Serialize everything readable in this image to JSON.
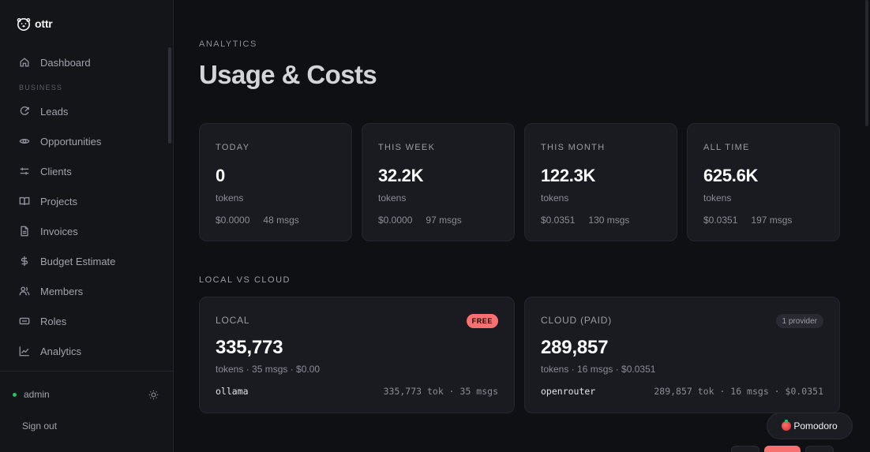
{
  "app": {
    "name": "ottr"
  },
  "sidebar": {
    "items_top": [
      {
        "label": "Dashboard",
        "icon": "home-icon"
      }
    ],
    "section_label": "BUSINESS",
    "items": [
      {
        "label": "Leads",
        "icon": "leads-icon"
      },
      {
        "label": "Opportunities",
        "icon": "eye-icon"
      },
      {
        "label": "Clients",
        "icon": "sliders-icon"
      },
      {
        "label": "Projects",
        "icon": "book-icon"
      },
      {
        "label": "Invoices",
        "icon": "file-icon"
      },
      {
        "label": "Budget Estimate",
        "icon": "dollar-icon"
      },
      {
        "label": "Members",
        "icon": "users-icon"
      },
      {
        "label": "Roles",
        "icon": "id-card-icon"
      },
      {
        "label": "Analytics",
        "icon": "chart-icon"
      }
    ],
    "user": {
      "name": "admin",
      "status_color": "#22c55e"
    },
    "sign_out": "Sign out"
  },
  "header": {
    "eyebrow": "ANALYTICS",
    "title": "Usage & Costs"
  },
  "stats": [
    {
      "label": "TODAY",
      "value": "0",
      "unit": "tokens",
      "cost": "$0.0000",
      "msgs": "48 msgs"
    },
    {
      "label": "THIS WEEK",
      "value": "32.2K",
      "unit": "tokens",
      "cost": "$0.0000",
      "msgs": "97 msgs"
    },
    {
      "label": "THIS MONTH",
      "value": "122.3K",
      "unit": "tokens",
      "cost": "$0.0351",
      "msgs": "130 msgs"
    },
    {
      "label": "ALL TIME",
      "value": "625.6K",
      "unit": "tokens",
      "cost": "$0.0351",
      "msgs": "197 msgs"
    }
  ],
  "local_vs_cloud": {
    "heading": "LOCAL VS CLOUD",
    "local": {
      "label": "LOCAL",
      "badge": "FREE",
      "value": "335,773",
      "sub": "tokens · 35 msgs · $0.00",
      "provider": "ollama",
      "provider_stats": "335,773 tok · 35 msgs"
    },
    "cloud": {
      "label": "CLOUD (PAID)",
      "badge": "1 provider",
      "value": "289,857",
      "sub": "tokens · 16 msgs · $0.0351",
      "provider": "openrouter",
      "provider_stats": "289,857 tok · 16 msgs · $0.0351"
    }
  },
  "pomodoro": {
    "label": "Pomodoro"
  },
  "colors": {
    "accent": "#f87171",
    "bg": "#0f1014",
    "card": "#1a1b21",
    "online": "#22c55e"
  }
}
